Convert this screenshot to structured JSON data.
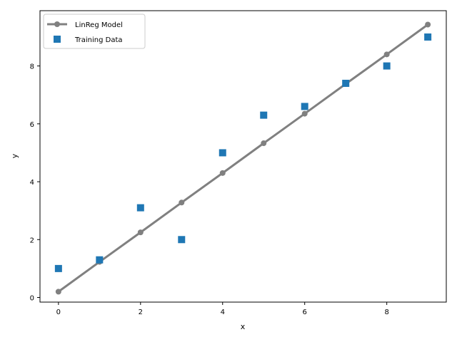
{
  "chart_data": {
    "type": "scatter",
    "title": "",
    "xlabel": "x",
    "ylabel": "y",
    "xlim": [
      -0.45,
      9.45
    ],
    "ylim": [
      -0.16,
      9.91
    ],
    "xticks": [
      0,
      2,
      4,
      6,
      8
    ],
    "yticks": [
      0,
      2,
      4,
      6,
      8
    ],
    "grid": false,
    "legend_position": "top-left",
    "series": [
      {
        "name": "LinReg Model",
        "kind": "line",
        "color": "#808080",
        "marker": "circle",
        "x": [
          0,
          1,
          2,
          3,
          4,
          5,
          6,
          7,
          8,
          9
        ],
        "y": [
          0.2,
          1.23,
          2.25,
          3.28,
          4.3,
          5.33,
          6.35,
          7.38,
          8.4,
          9.43
        ]
      },
      {
        "name": "Training Data",
        "kind": "scatter",
        "color": "#1f77b4",
        "marker": "square",
        "x": [
          0,
          1,
          2,
          3,
          4,
          5,
          6,
          7,
          8,
          9
        ],
        "y": [
          1.0,
          1.3,
          3.1,
          2.0,
          5.0,
          6.3,
          6.6,
          7.4,
          8.0,
          9.0
        ]
      }
    ]
  }
}
